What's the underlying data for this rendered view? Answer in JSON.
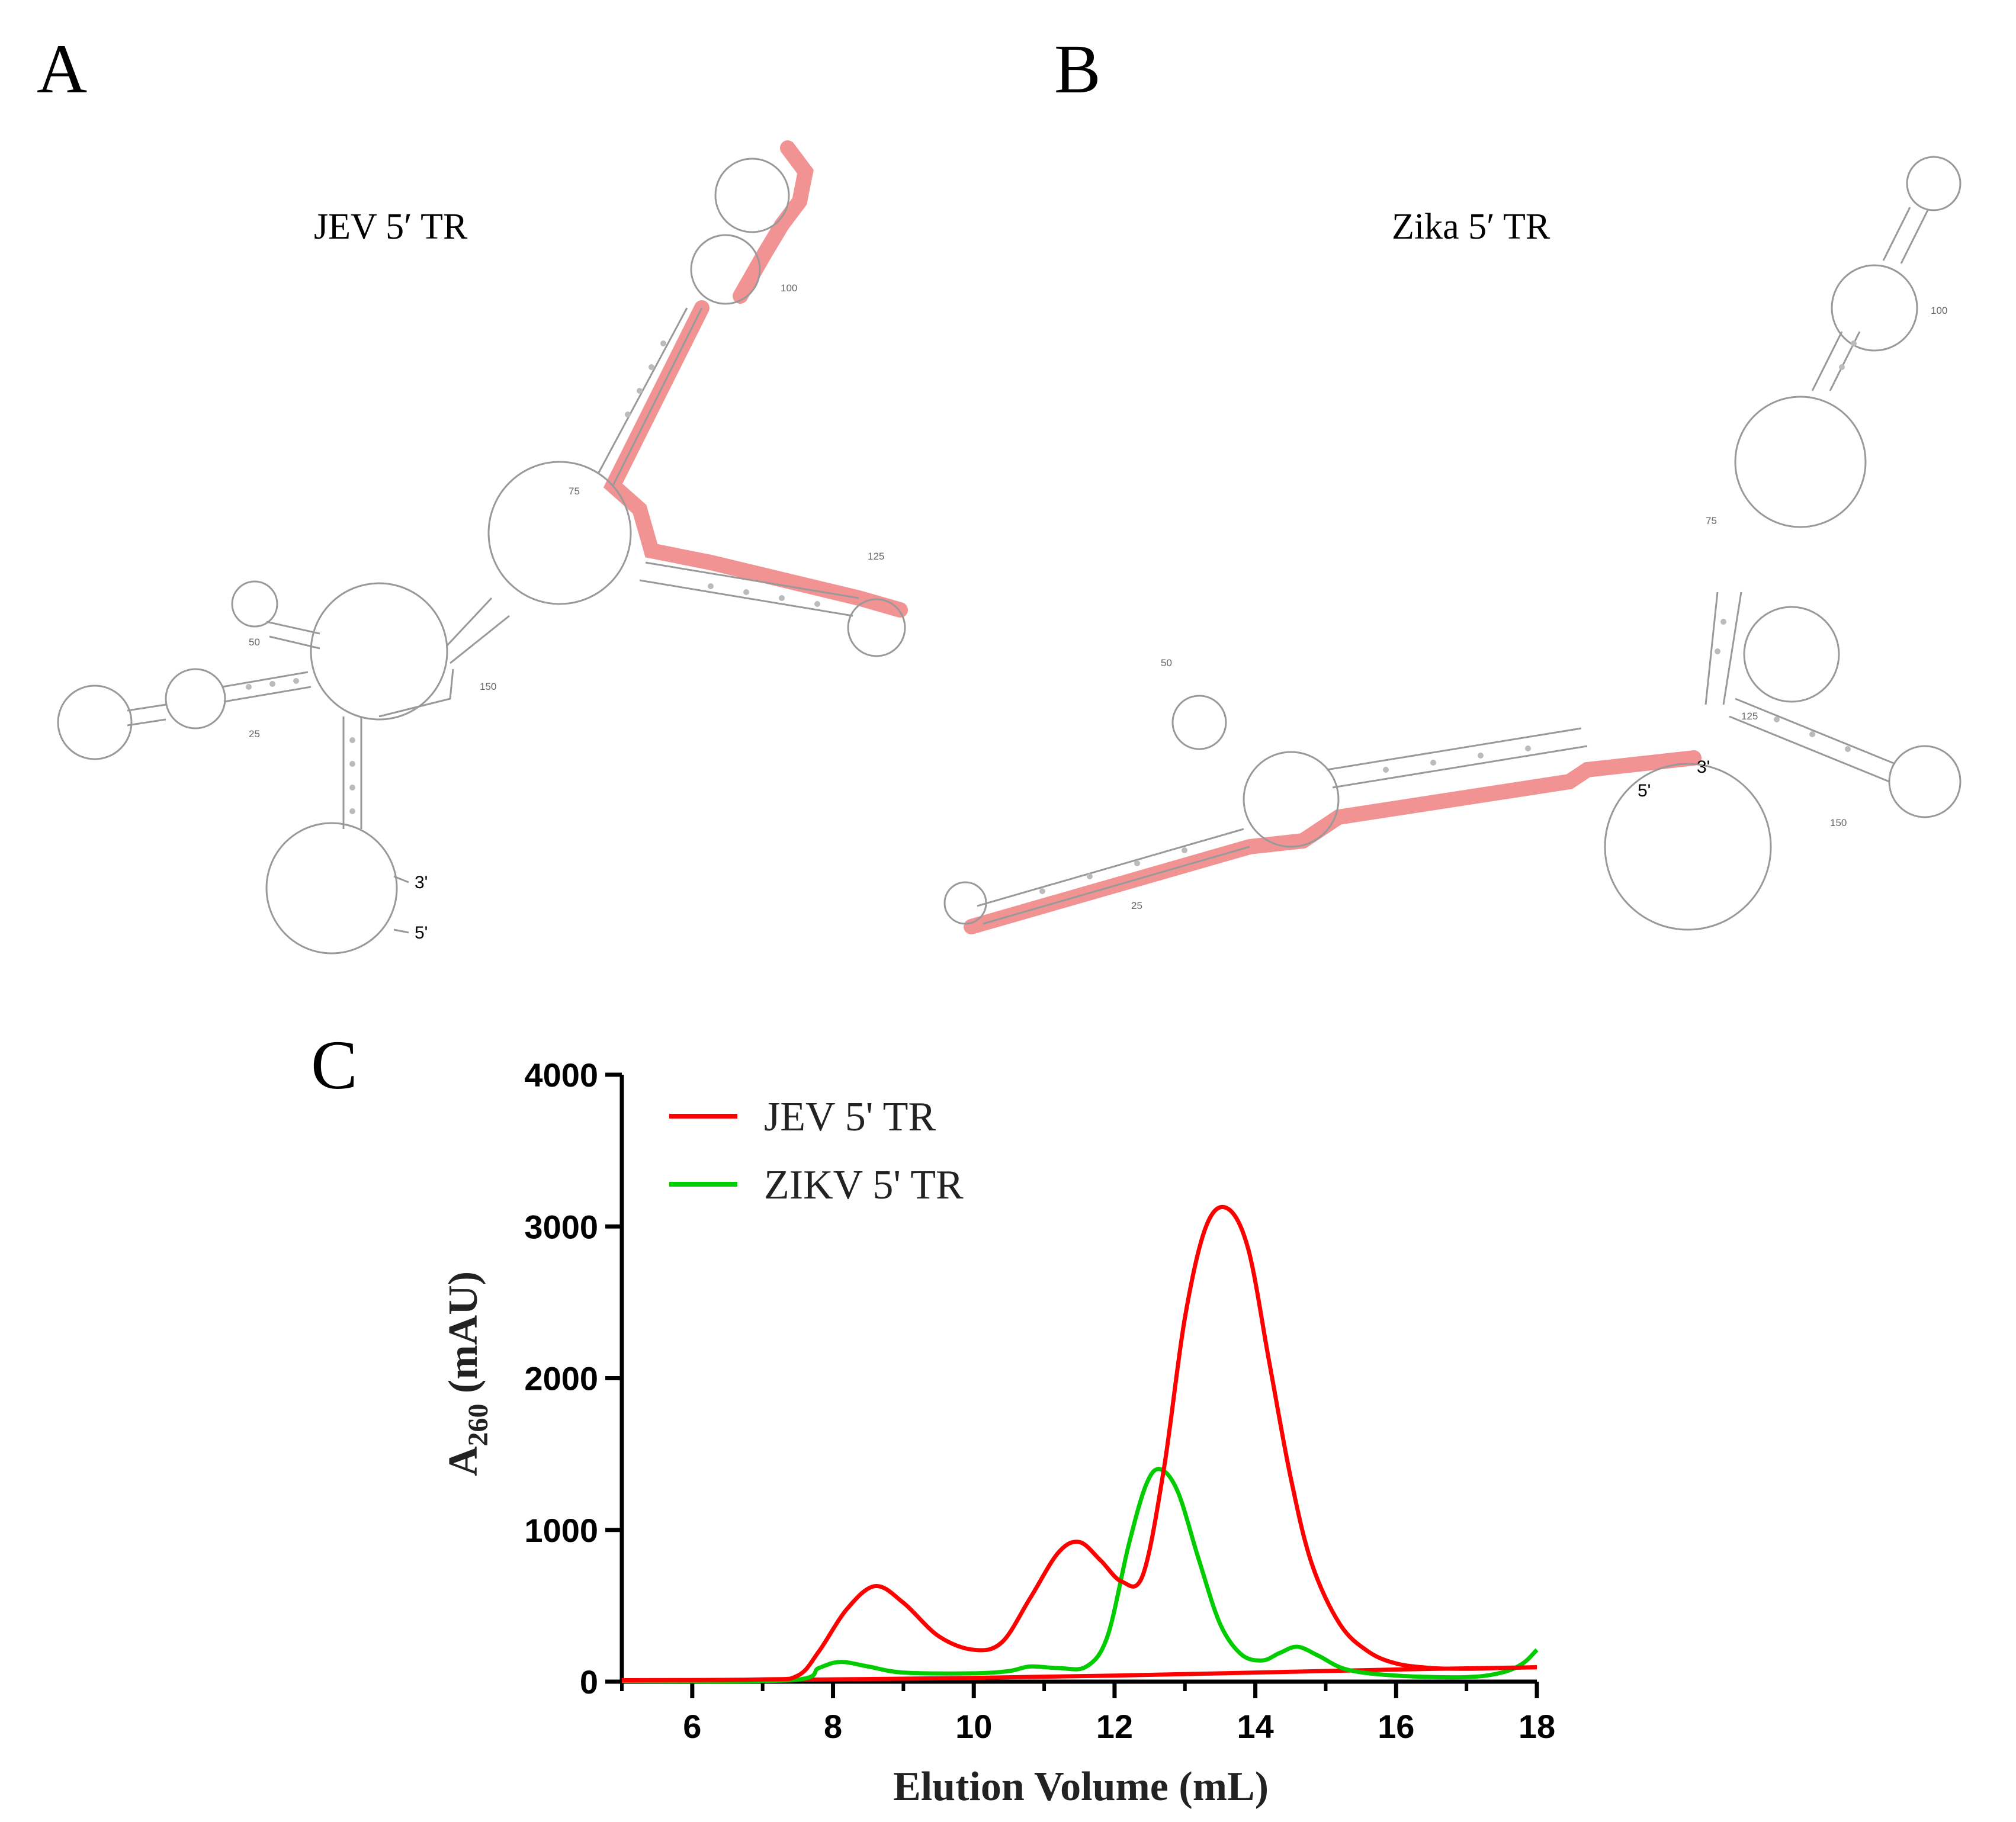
{
  "panels": {
    "a": {
      "letter": "A",
      "title": "JEV 5′ TR",
      "end3": "3'",
      "end5": "5'",
      "numbers": [
        "25",
        "50",
        "75",
        "100",
        "125",
        "150"
      ]
    },
    "b": {
      "letter": "B",
      "title": "Zika 5′ TR",
      "end3": "3'",
      "end5": "5'",
      "numbers": [
        "25",
        "50",
        "75",
        "100",
        "125",
        "150"
      ]
    },
    "c": {
      "letter": "C"
    }
  },
  "colors": {
    "jev": "#ff0000",
    "zikv": "#00cc00",
    "highlight": "#f08080",
    "structure": "#777777"
  },
  "chart_data": {
    "type": "line",
    "xlabel": "Elution Volume  (mL)",
    "ylabel_main": "A",
    "ylabel_sub": "260",
    "ylabel_unit": " (mAU)",
    "xlim": [
      5,
      18
    ],
    "ylim": [
      0,
      4000
    ],
    "xticks": [
      6,
      8,
      10,
      12,
      14,
      16,
      18
    ],
    "yticks": [
      0,
      1000,
      2000,
      3000,
      4000
    ],
    "legend_position": "top-left",
    "series": [
      {
        "name": "JEV 5'  TR",
        "color": "#ff0000",
        "x": [
          5,
          7,
          7.5,
          7.8,
          8.2,
          8.6,
          9.0,
          9.5,
          10.0,
          10.4,
          10.8,
          11.2,
          11.5,
          11.8,
          12.1,
          12.4,
          12.7,
          13.0,
          13.3,
          13.6,
          13.9,
          14.2,
          14.5,
          14.8,
          15.2,
          15.6,
          16.0,
          16.5,
          17.0,
          17.5,
          18
        ],
        "values": [
          10,
          15,
          40,
          200,
          480,
          630,
          520,
          300,
          210,
          260,
          550,
          850,
          920,
          800,
          660,
          700,
          1400,
          2400,
          3000,
          3120,
          2850,
          2100,
          1350,
          780,
          380,
          200,
          120,
          90,
          85,
          90,
          95
        ]
      },
      {
        "name": "ZIKV 5' TR",
        "color": "#00cc00",
        "x": [
          5,
          7.4,
          7.8,
          8.1,
          8.5,
          9.0,
          10.0,
          10.5,
          10.8,
          11.2,
          11.6,
          11.9,
          12.2,
          12.45,
          12.65,
          12.9,
          13.2,
          13.5,
          13.8,
          14.1,
          14.35,
          14.6,
          14.9,
          15.3,
          16.0,
          17.0,
          17.5,
          17.8,
          18
        ],
        "values": [
          5,
          10,
          90,
          130,
          100,
          60,
          55,
          70,
          100,
          90,
          100,
          300,
          900,
          1300,
          1400,
          1250,
          800,
          380,
          180,
          140,
          190,
          230,
          170,
          80,
          40,
          30,
          60,
          120,
          210
        ]
      },
      {
        "name": "",
        "color": "#ff0000",
        "x": [
          5,
          8,
          10,
          12,
          14,
          16,
          18
        ],
        "values": [
          5,
          15,
          25,
          40,
          60,
          80,
          95
        ]
      }
    ]
  }
}
